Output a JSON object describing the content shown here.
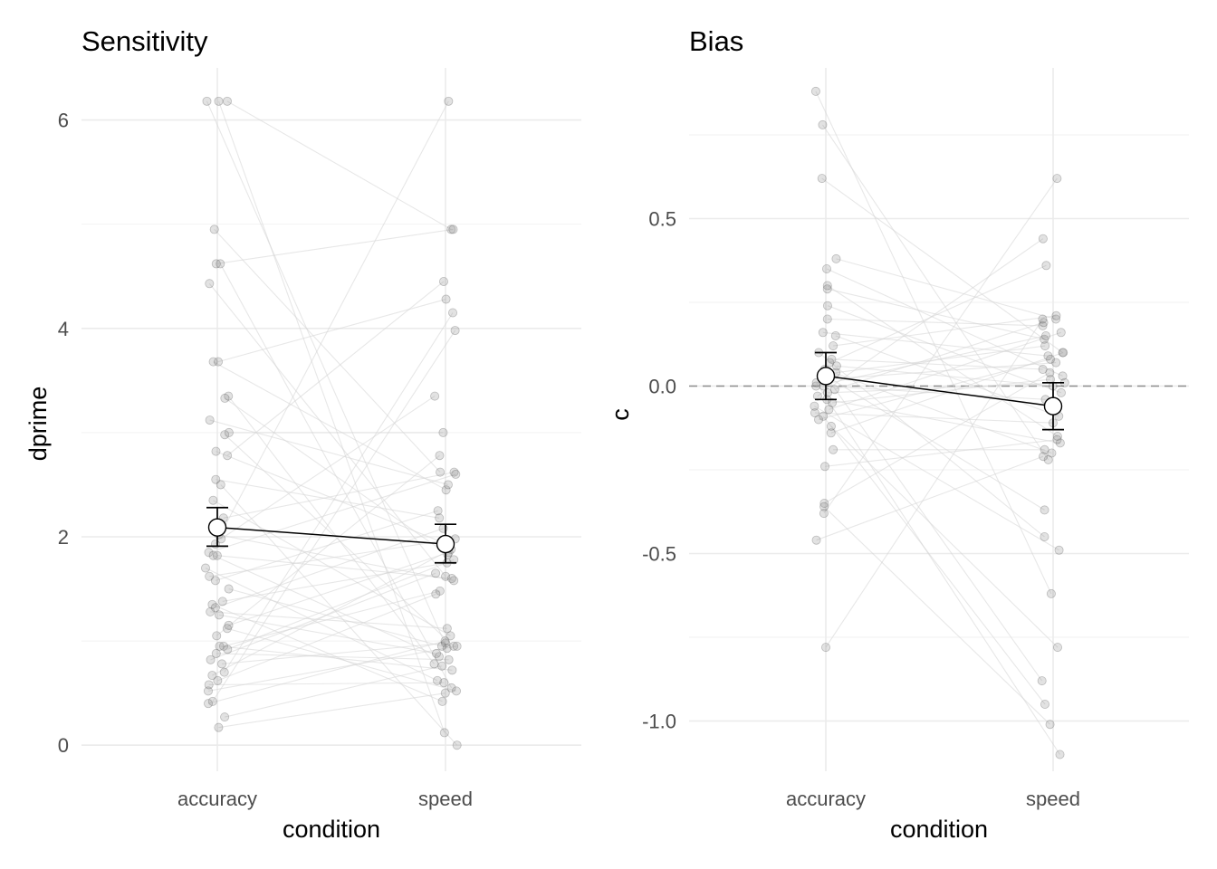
{
  "chart_data": [
    {
      "type": "scatter",
      "title": "Sensitivity",
      "xlabel": "condition",
      "ylabel": "dprime",
      "categories": [
        "accuracy",
        "speed"
      ],
      "yticks": [
        0,
        2,
        4,
        6
      ],
      "ytick_labels": [
        "0",
        "2",
        "4",
        "6"
      ],
      "ylim": [
        -0.25,
        6.5
      ],
      "grid": true,
      "reference_line": null,
      "mean_points": [
        {
          "condition": "accuracy",
          "mean": 2.09,
          "lower": 1.91,
          "upper": 2.28
        },
        {
          "condition": "speed",
          "mean": 1.93,
          "lower": 1.75,
          "upper": 2.12
        }
      ],
      "paired_observations": [
        [
          6.18,
          4.95
        ],
        [
          6.18,
          0.93
        ],
        [
          6.18,
          0.12
        ],
        [
          4.95,
          2.62
        ],
        [
          4.62,
          4.95
        ],
        [
          4.62,
          0.55
        ],
        [
          4.43,
          1.62
        ],
        [
          3.68,
          2.45
        ],
        [
          3.68,
          4.28
        ],
        [
          3.35,
          0.78
        ],
        [
          3.33,
          1.83
        ],
        [
          3.12,
          2.5
        ],
        [
          3.0,
          3.0
        ],
        [
          2.98,
          0.95
        ],
        [
          2.82,
          1.95
        ],
        [
          2.78,
          4.45
        ],
        [
          2.55,
          2.18
        ],
        [
          2.5,
          0.0
        ],
        [
          2.35,
          1.05
        ],
        [
          2.18,
          2.62
        ],
        [
          2.02,
          1.58
        ],
        [
          1.98,
          3.35
        ],
        [
          1.93,
          6.18
        ],
        [
          1.85,
          2.6
        ],
        [
          1.82,
          0.85
        ],
        [
          1.82,
          1.6
        ],
        [
          1.7,
          0.62
        ],
        [
          1.62,
          1.98
        ],
        [
          1.58,
          2.25
        ],
        [
          1.5,
          0.95
        ],
        [
          1.38,
          1.75
        ],
        [
          1.35,
          0.42
        ],
        [
          1.32,
          2.08
        ],
        [
          1.28,
          1.12
        ],
        [
          1.25,
          0.88
        ],
        [
          1.15,
          1.85
        ],
        [
          1.12,
          0.52
        ],
        [
          1.05,
          2.78
        ],
        [
          0.95,
          1.48
        ],
        [
          0.95,
          0.72
        ],
        [
          0.92,
          1.78
        ],
        [
          0.88,
          0.82
        ],
        [
          0.82,
          1.65
        ],
        [
          0.78,
          0.98
        ],
        [
          0.7,
          4.15
        ],
        [
          0.67,
          1.88
        ],
        [
          0.62,
          1.45
        ],
        [
          0.58,
          0.6
        ],
        [
          0.52,
          0.95
        ],
        [
          0.42,
          3.98
        ],
        [
          0.4,
          1.0
        ],
        [
          0.27,
          0.76
        ],
        [
          0.17,
          0.5
        ]
      ]
    },
    {
      "type": "scatter",
      "title": "Bias",
      "xlabel": "condition",
      "ylabel": "c",
      "categories": [
        "accuracy",
        "speed"
      ],
      "yticks": [
        -1.0,
        -0.5,
        0.0,
        0.5
      ],
      "ytick_labels": [
        "-1.0",
        "-0.5",
        "0.0",
        "0.5"
      ],
      "ylim": [
        -1.15,
        0.95
      ],
      "grid": true,
      "reference_line": 0,
      "mean_points": [
        {
          "condition": "accuracy",
          "mean": 0.03,
          "lower": -0.04,
          "upper": 0.1
        },
        {
          "condition": "speed",
          "mean": -0.06,
          "lower": -0.13,
          "upper": 0.01
        }
      ],
      "paired_observations": [
        [
          0.88,
          -0.62
        ],
        [
          0.78,
          -0.22
        ],
        [
          0.62,
          0.1
        ],
        [
          0.38,
          0.2
        ],
        [
          0.35,
          0.03
        ],
        [
          0.3,
          -0.15
        ],
        [
          0.29,
          0.14
        ],
        [
          0.24,
          -0.02
        ],
        [
          0.2,
          0.18
        ],
        [
          0.16,
          0.09
        ],
        [
          0.15,
          -0.09
        ],
        [
          0.12,
          0.21
        ],
        [
          0.1,
          -0.45
        ],
        [
          0.08,
          0.05
        ],
        [
          0.07,
          0.36
        ],
        [
          0.06,
          0.0
        ],
        [
          0.05,
          -0.2
        ],
        [
          0.04,
          0.12
        ],
        [
          0.03,
          -0.88
        ],
        [
          0.03,
          -0.37
        ],
        [
          0.02,
          0.07
        ],
        [
          0.01,
          -1.1
        ],
        [
          0.0,
          0.15
        ],
        [
          0.0,
          -0.04
        ],
        [
          -0.01,
          0.19
        ],
        [
          -0.02,
          0.01
        ],
        [
          -0.03,
          0.44
        ],
        [
          -0.04,
          -0.17
        ],
        [
          -0.05,
          0.02
        ],
        [
          -0.06,
          -0.49
        ],
        [
          -0.07,
          0.16
        ],
        [
          -0.08,
          -0.11
        ],
        [
          -0.09,
          -0.95
        ],
        [
          -0.1,
          0.08
        ],
        [
          -0.12,
          -0.78
        ],
        [
          -0.14,
          0.1
        ],
        [
          -0.19,
          -0.19
        ],
        [
          -0.24,
          -0.16
        ],
        [
          -0.35,
          0.04
        ],
        [
          -0.36,
          -1.01
        ],
        [
          -0.38,
          0.62
        ],
        [
          -0.46,
          -0.21
        ],
        [
          -0.78,
          0.2
        ]
      ]
    }
  ]
}
